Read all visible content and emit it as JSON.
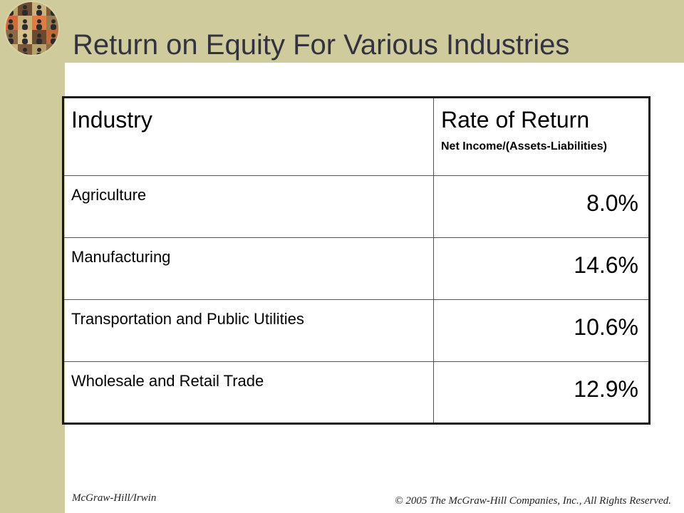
{
  "slide": {
    "title": "Return on Equity For Various Industries"
  },
  "table": {
    "header": {
      "industry": "Industry",
      "rate": "Rate of Return",
      "rate_note": "Net Income/(Assets-Liabilities)"
    },
    "rows": [
      {
        "industry": "Agriculture",
        "rate": "8.0%"
      },
      {
        "industry": "Manufacturing",
        "rate": "14.6%"
      },
      {
        "industry": "Transportation and Public Utilities",
        "rate": "10.6%"
      },
      {
        "industry": "Wholesale and Retail Trade",
        "rate": "12.9%"
      }
    ]
  },
  "footer": {
    "publisher": "McGraw-Hill/Irwin",
    "copyright": "© 2005 The McGraw-Hill Companies, Inc., All Rights Reserved."
  },
  "colors": {
    "sidebar": "#cfcb9c",
    "title_text": "#33333f"
  }
}
